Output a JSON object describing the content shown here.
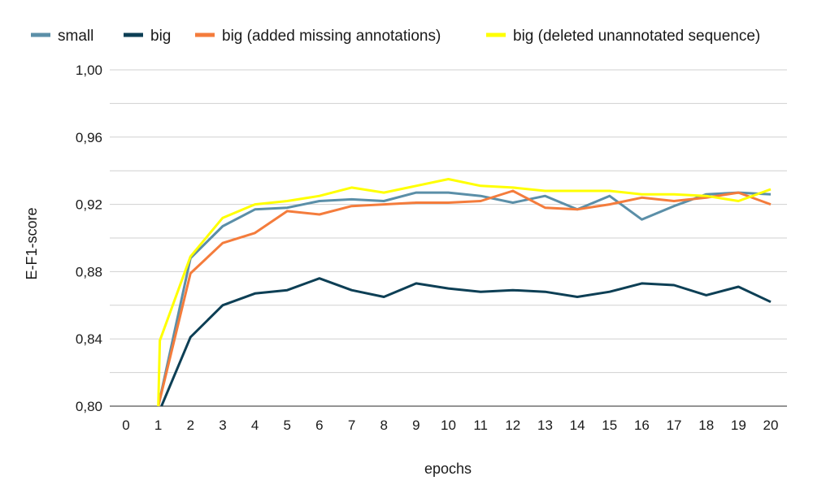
{
  "chart_data": {
    "type": "line",
    "title": "",
    "xlabel": "epochs",
    "ylabel": "E-F1-score",
    "x": [
      0,
      1,
      2,
      3,
      4,
      5,
      6,
      7,
      8,
      9,
      10,
      11,
      12,
      13,
      14,
      15,
      16,
      17,
      18,
      19,
      20
    ],
    "x_tick_labels": [
      "0",
      "1",
      "2",
      "3",
      "4",
      "5",
      "6",
      "7",
      "8",
      "9",
      "10",
      "11",
      "12",
      "13",
      "14",
      "15",
      "16",
      "17",
      "18",
      "19",
      "20"
    ],
    "xlim": [
      0,
      20
    ],
    "ylim": [
      0.8,
      1.0
    ],
    "y_ticks": [
      0.8,
      0.82,
      0.84,
      0.86,
      0.88,
      0.9,
      0.92,
      0.94,
      0.96,
      0.98,
      1.0
    ],
    "y_tick_labels": [
      "0,80",
      "0,84",
      "0,88",
      "0,92",
      "0,96",
      "1,00"
    ],
    "y_tick_label_values": [
      0.8,
      0.84,
      0.88,
      0.92,
      0.96,
      1.0
    ],
    "grid": true,
    "legend_position": "top",
    "series": [
      {
        "name": "small",
        "color": "#5b8fa8",
        "x": [
          1,
          2,
          3,
          4,
          5,
          6,
          7,
          8,
          9,
          10,
          11,
          12,
          13,
          14,
          15,
          16,
          17,
          18,
          19,
          20
        ],
        "values": [
          0.799,
          0.888,
          0.907,
          0.917,
          0.918,
          0.922,
          0.923,
          0.922,
          0.927,
          0.927,
          0.925,
          0.921,
          0.925,
          0.917,
          0.925,
          0.911,
          0.919,
          0.926,
          0.927,
          0.926
        ]
      },
      {
        "name": "big",
        "color": "#0d3f55",
        "x": [
          1.1,
          2,
          3,
          4,
          5,
          6,
          7,
          8,
          9,
          10,
          11,
          12,
          13,
          14,
          15,
          16,
          17,
          18,
          19,
          20
        ],
        "values": [
          0.799,
          0.841,
          0.86,
          0.867,
          0.869,
          0.876,
          0.869,
          0.865,
          0.873,
          0.87,
          0.868,
          0.869,
          0.868,
          0.865,
          0.868,
          0.873,
          0.872,
          0.866,
          0.871,
          0.862
        ]
      },
      {
        "name": "big (added missing annotations)",
        "color": "#f47c3c",
        "x": [
          1,
          2,
          3,
          4,
          5,
          6,
          7,
          8,
          9,
          10,
          11,
          12,
          13,
          14,
          15,
          16,
          17,
          18,
          19,
          20
        ],
        "values": [
          0.799,
          0.879,
          0.897,
          0.903,
          0.916,
          0.914,
          0.919,
          0.92,
          0.921,
          0.921,
          0.922,
          0.928,
          0.918,
          0.917,
          0.92,
          0.924,
          0.922,
          0.924,
          0.927,
          0.92
        ]
      },
      {
        "name": "big (deleted unannotated sequence)",
        "color": "#ffff00",
        "x": [
          1,
          1.05,
          2,
          3,
          4,
          5,
          6,
          7,
          8,
          9,
          10,
          11,
          12,
          13,
          14,
          15,
          16,
          17,
          18,
          19,
          20
        ],
        "values": [
          0.799,
          0.839,
          0.889,
          0.912,
          0.92,
          0.922,
          0.925,
          0.93,
          0.927,
          0.931,
          0.935,
          0.931,
          0.93,
          0.928,
          0.928,
          0.928,
          0.926,
          0.926,
          0.925,
          0.922,
          0.929
        ]
      }
    ]
  }
}
